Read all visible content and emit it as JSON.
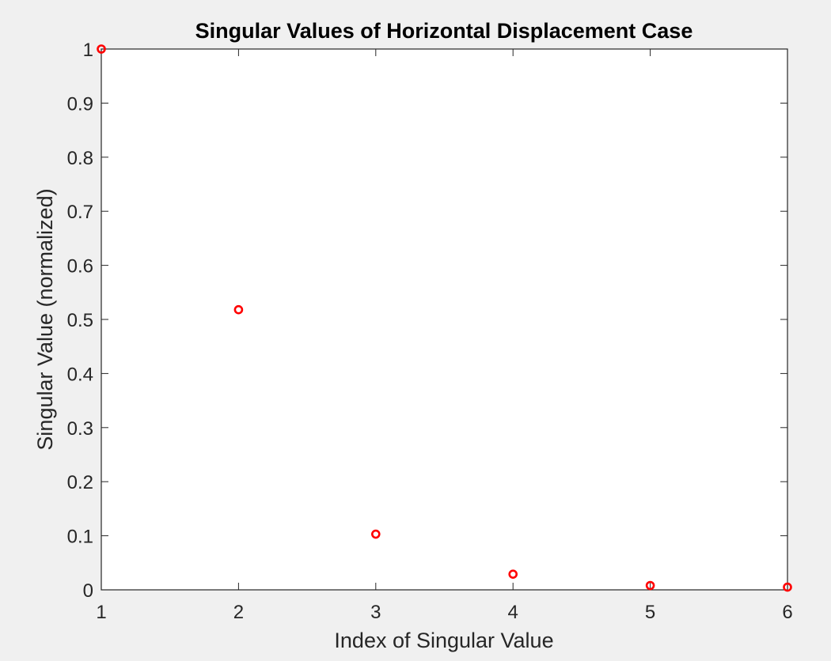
{
  "window": {
    "background": "#f0f0f0"
  },
  "chart_data": {
    "type": "scatter",
    "title": "Singular Values of Horizontal Displacement Case",
    "xlabel": "Index of Singular Value",
    "ylabel": "Singular Value (normalized)",
    "xlim": [
      1,
      6
    ],
    "ylim": [
      0,
      1
    ],
    "xticks": [
      1,
      2,
      3,
      4,
      5,
      6
    ],
    "xtick_labels": [
      "1",
      "2",
      "3",
      "4",
      "5",
      "6"
    ],
    "yticks": [
      0,
      0.1,
      0.2,
      0.3,
      0.4,
      0.5,
      0.6,
      0.7,
      0.8,
      0.9,
      1
    ],
    "ytick_labels": [
      "0",
      "0.1",
      "0.2",
      "0.3",
      "0.4",
      "0.5",
      "0.6",
      "0.7",
      "0.8",
      "0.9",
      "1"
    ],
    "grid": false,
    "marker": "circle-open",
    "series": [
      {
        "x": [
          1,
          2,
          3,
          4,
          5,
          6
        ],
        "y": [
          1.0,
          0.518,
          0.103,
          0.029,
          0.008,
          0.005
        ],
        "color": "#ff0000"
      }
    ],
    "colors": {
      "axes_background": "#ffffff",
      "axes_edge": "#262626",
      "marker": "#ff0000"
    }
  }
}
